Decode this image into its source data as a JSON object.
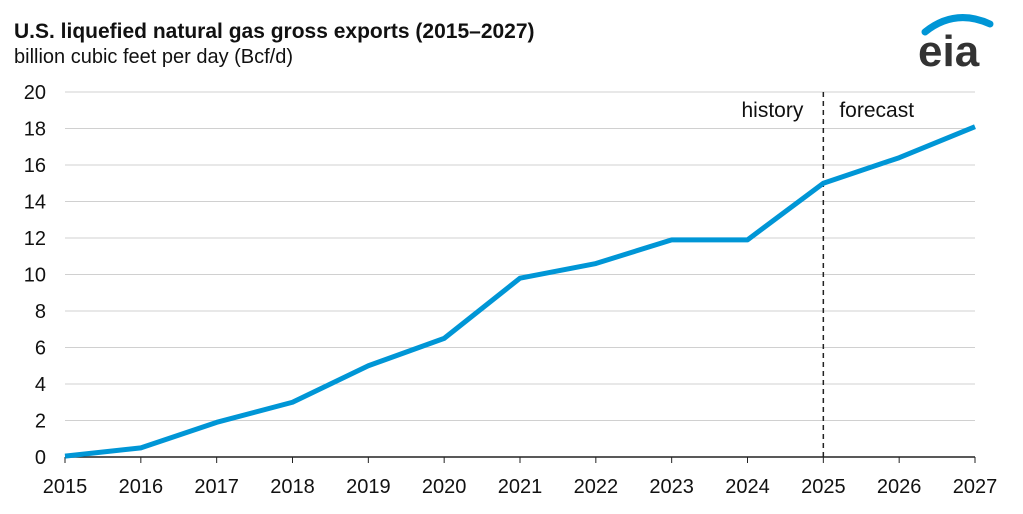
{
  "chart_data": {
    "type": "line",
    "title": "U.S. liquefied natural gas gross exports (2015–2027)",
    "subtitle": "billion cubic feet per day (Bcf/d)",
    "x": [
      2015,
      2016,
      2017,
      2018,
      2019,
      2020,
      2021,
      2022,
      2023,
      2024,
      2025,
      2026,
      2027
    ],
    "series": [
      {
        "values": [
          0.05,
          0.5,
          1.9,
          3.0,
          5.0,
          6.5,
          9.8,
          10.6,
          11.9,
          11.9,
          15.0,
          16.4,
          18.1
        ],
        "color": "#0096d6"
      }
    ],
    "xlim": [
      2015,
      2027
    ],
    "ylim": [
      0,
      20
    ],
    "yticks": [
      0,
      2,
      4,
      6,
      8,
      10,
      12,
      14,
      16,
      18,
      20
    ],
    "grid": "horizontal",
    "divider_year": 2025,
    "annotations": {
      "left": "history",
      "right": "forecast"
    }
  },
  "logo": "eia"
}
